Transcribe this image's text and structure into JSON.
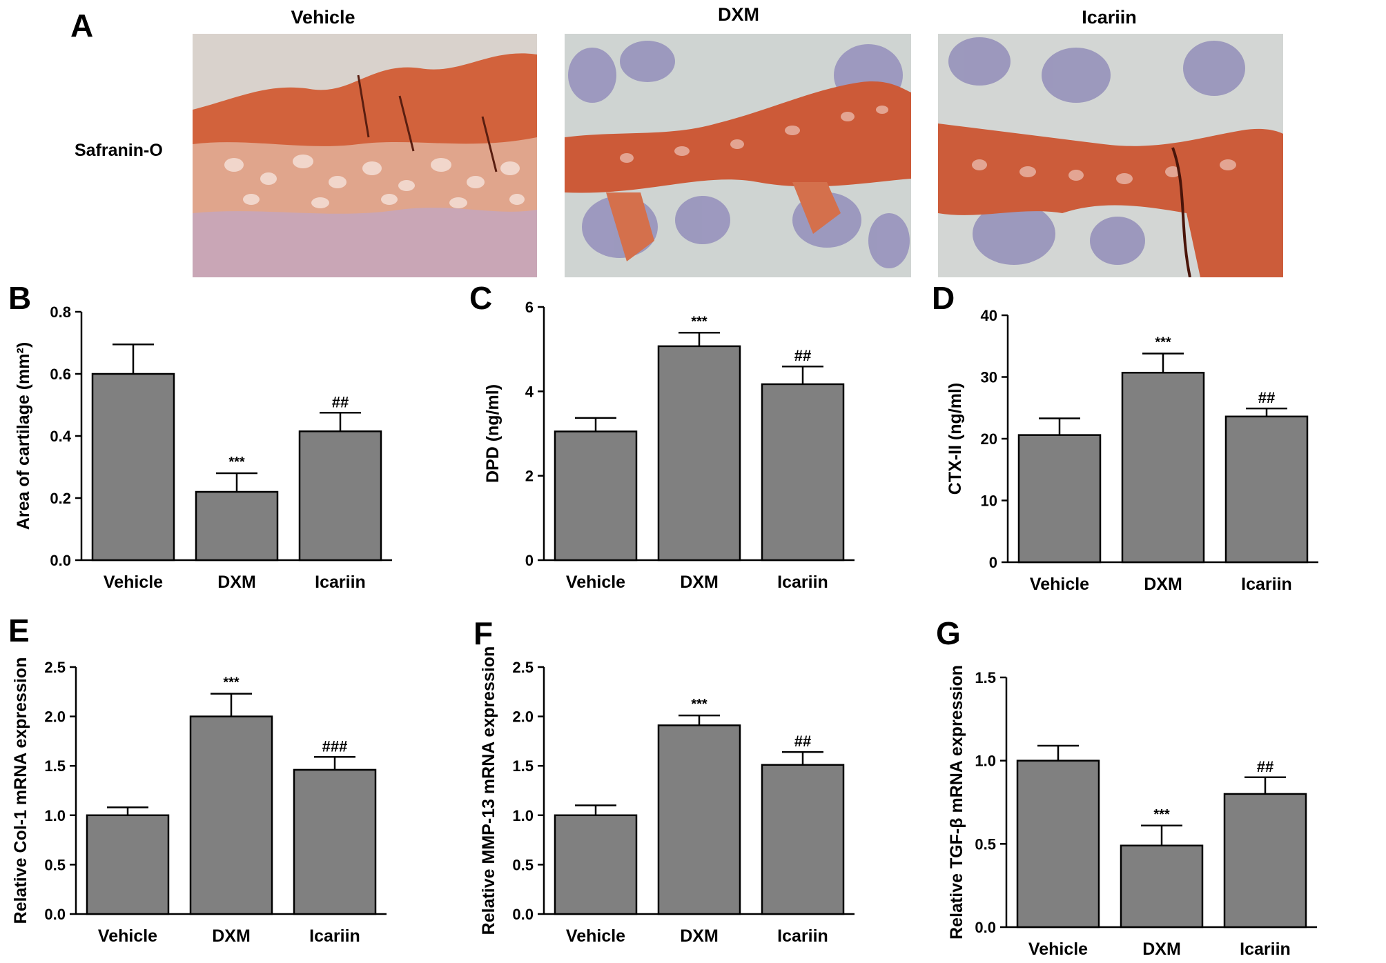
{
  "figure": {
    "panel_a": {
      "letter": "A",
      "columns": [
        "Vehicle",
        "DXM",
        "Icariin"
      ],
      "row_label": "Safranin-O"
    }
  },
  "chart_data": [
    {
      "panel": "B",
      "type": "bar",
      "categories": [
        "Vehicle",
        "DXM",
        "Icariin"
      ],
      "values": [
        0.6,
        0.22,
        0.415
      ],
      "errors": [
        0.095,
        0.06,
        0.06
      ],
      "annotations": [
        "",
        "***",
        "##"
      ],
      "ylabel": "Area of cartilage (mm²)",
      "xlabel": "",
      "ylim": [
        0,
        0.8
      ],
      "yticks": [
        "0.0",
        "0.2",
        "0.4",
        "0.6",
        "0.8"
      ],
      "grid": false,
      "bar_color": "#808080"
    },
    {
      "panel": "C",
      "type": "bar",
      "categories": [
        "Vehicle",
        "DXM",
        "Icariin"
      ],
      "values": [
        3.05,
        5.07,
        4.17
      ],
      "errors": [
        0.32,
        0.32,
        0.42
      ],
      "annotations": [
        "",
        "***",
        "##"
      ],
      "ylabel": "DPD (ng/ml)",
      "xlabel": "",
      "ylim": [
        0,
        6
      ],
      "yticks": [
        "0",
        "2",
        "4",
        "6"
      ],
      "grid": false,
      "bar_color": "#808080"
    },
    {
      "panel": "D",
      "type": "bar",
      "categories": [
        "Vehicle",
        "DXM",
        "Icariin"
      ],
      "values": [
        20.6,
        30.7,
        23.6
      ],
      "errors": [
        2.7,
        3.1,
        1.3
      ],
      "annotations": [
        "",
        "***",
        "##"
      ],
      "ylabel": "CTX-II (ng/ml)",
      "xlabel": "",
      "ylim": [
        0,
        40
      ],
      "yticks": [
        "0",
        "10",
        "20",
        "30",
        "40"
      ],
      "grid": false,
      "bar_color": "#808080"
    },
    {
      "panel": "E",
      "type": "bar",
      "categories": [
        "Vehicle",
        "DXM",
        "Icariin"
      ],
      "values": [
        1.0,
        2.0,
        1.46
      ],
      "errors": [
        0.08,
        0.23,
        0.13
      ],
      "annotations": [
        "",
        "***",
        "###"
      ],
      "ylabel": "Relative Col-1 mRNA expression",
      "xlabel": "",
      "ylim": [
        0,
        2.5
      ],
      "yticks": [
        "0.0",
        "0.5",
        "1.0",
        "1.5",
        "2.0",
        "2.5"
      ],
      "grid": false,
      "bar_color": "#808080"
    },
    {
      "panel": "F",
      "type": "bar",
      "categories": [
        "Vehicle",
        "DXM",
        "Icariin"
      ],
      "values": [
        1.0,
        1.91,
        1.51
      ],
      "errors": [
        0.1,
        0.1,
        0.13
      ],
      "annotations": [
        "",
        "***",
        "##"
      ],
      "ylabel": "Relative MMP-13 mRNA expression",
      "xlabel": "",
      "ylim": [
        0,
        2.5
      ],
      "yticks": [
        "0.0",
        "0.5",
        "1.0",
        "1.5",
        "2.0",
        "2.5"
      ],
      "grid": false,
      "bar_color": "#808080"
    },
    {
      "panel": "G",
      "type": "bar",
      "categories": [
        "Vehicle",
        "DXM",
        "Icariin"
      ],
      "values": [
        1.0,
        0.49,
        0.8
      ],
      "errors": [
        0.09,
        0.12,
        0.1
      ],
      "annotations": [
        "",
        "***",
        "##"
      ],
      "ylabel": "Relative TGF-β mRNA expression",
      "xlabel": "",
      "ylim": [
        0,
        1.5
      ],
      "yticks": [
        "0.0",
        "0.5",
        "1.0",
        "1.5"
      ],
      "grid": false,
      "bar_color": "#808080"
    }
  ]
}
